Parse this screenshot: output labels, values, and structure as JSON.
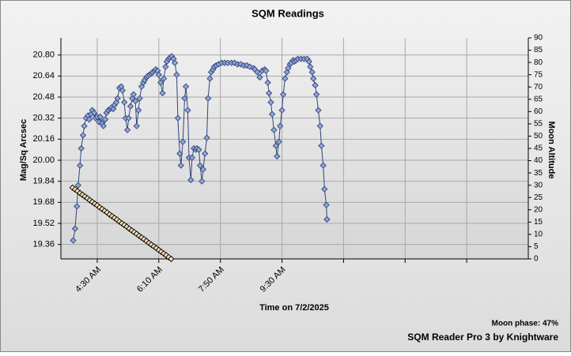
{
  "chart_data": {
    "type": "scatter-line",
    "title": "SQM Readings",
    "xlabel": "Time on 7/2/2025",
    "ylabel": "Mag/Sq Arcsec",
    "y2label": "Moon Altitude",
    "footer_note": "Moon phase: 47%",
    "footer": "SQM Reader Pro 3 by Knightware",
    "xlim": [
      211,
      970
    ],
    "xticks": [
      {
        "value": 270,
        "label": "4:30 AM"
      },
      {
        "value": 370,
        "label": "6:10 AM"
      },
      {
        "value": 470,
        "label": "7:50 AM"
      },
      {
        "value": 570,
        "label": "9:30 AM"
      },
      {
        "value": 670,
        "label": null
      },
      {
        "value": 770,
        "label": null
      },
      {
        "value": 870,
        "label": null
      }
    ],
    "ylim": [
      19.25,
      20.93
    ],
    "yticks": [
      19.36,
      19.52,
      19.68,
      19.84,
      {
        "value": 20.0,
        "label": "20.00"
      },
      20.16,
      20.32,
      20.48,
      20.64,
      {
        "value": 20.8,
        "label": "20.80"
      }
    ],
    "y2lim": [
      0,
      90
    ],
    "y2ticks": [
      0,
      5,
      10,
      15,
      20,
      25,
      30,
      35,
      40,
      45,
      50,
      55,
      60,
      65,
      70,
      75,
      80,
      85,
      90
    ],
    "grid": true,
    "series": [
      {
        "color": "#33447a",
        "marker_color": "#8ea6d6",
        "line": true,
        "x": [
          231,
          234,
          237,
          239,
          242,
          244,
          247,
          249,
          252,
          255,
          257,
          260,
          262,
          265,
          267,
          270,
          273,
          275,
          278,
          280,
          283,
          285,
          288,
          291,
          293,
          296,
          298,
          301,
          303,
          306,
          309,
          311,
          314,
          316,
          319,
          321,
          324,
          327,
          329,
          332,
          334,
          337,
          339,
          342,
          345,
          347,
          350,
          352,
          355,
          358,
          360,
          363,
          365,
          368,
          370,
          373,
          376,
          378,
          381,
          383,
          386,
          388,
          391,
          394,
          396,
          399,
          401,
          404,
          406,
          409,
          412,
          414,
          417,
          419,
          422,
          424,
          427,
          430,
          432,
          435,
          437,
          440,
          442,
          445,
          448,
          450,
          453,
          455,
          458,
          460,
          463,
          467,
          472,
          477,
          482,
          488,
          493,
          498,
          503,
          508,
          513,
          518,
          524,
          526,
          530,
          534,
          538,
          542,
          544,
          547,
          549,
          552,
          554,
          557,
          560,
          562,
          565,
          567,
          570,
          572,
          575,
          578,
          580,
          583,
          585,
          588,
          590,
          593,
          596,
          601,
          606,
          611,
          614,
          616,
          619,
          621,
          624,
          626,
          629,
          632,
          634,
          637,
          639,
          642,
          643
        ],
        "values": [
          19.39,
          19.48,
          19.65,
          19.81,
          19.96,
          20.09,
          20.19,
          20.26,
          20.32,
          20.34,
          20.31,
          20.35,
          20.38,
          20.36,
          20.32,
          20.33,
          20.29,
          20.33,
          20.28,
          20.26,
          20.31,
          20.36,
          20.38,
          20.39,
          20.4,
          20.39,
          20.42,
          20.44,
          20.47,
          20.55,
          20.56,
          20.53,
          20.44,
          20.32,
          20.23,
          20.32,
          20.41,
          20.47,
          20.5,
          20.45,
          20.26,
          20.38,
          20.47,
          20.56,
          20.59,
          20.61,
          20.63,
          20.64,
          20.65,
          20.66,
          20.67,
          20.68,
          20.69,
          20.68,
          20.65,
          20.59,
          20.51,
          20.62,
          20.71,
          20.75,
          20.77,
          20.78,
          20.79,
          20.77,
          20.74,
          20.65,
          20.32,
          20.05,
          19.96,
          20.14,
          20.47,
          20.56,
          20.38,
          20.02,
          19.85,
          20.02,
          20.09,
          20.08,
          20.09,
          20.08,
          19.96,
          19.84,
          19.93,
          20.05,
          20.17,
          20.47,
          20.62,
          20.67,
          20.69,
          20.71,
          20.72,
          20.73,
          20.74,
          20.74,
          20.74,
          20.74,
          20.74,
          20.73,
          20.73,
          20.72,
          20.72,
          20.71,
          20.7,
          20.69,
          20.67,
          20.63,
          20.68,
          20.69,
          20.68,
          20.59,
          20.51,
          20.44,
          20.35,
          20.23,
          20.11,
          20.03,
          20.14,
          20.26,
          20.38,
          20.5,
          20.62,
          20.67,
          20.7,
          20.73,
          20.74,
          20.76,
          20.75,
          20.76,
          20.77,
          20.77,
          20.77,
          20.77,
          20.75,
          20.71,
          20.67,
          20.62,
          20.57,
          20.5,
          20.38,
          20.26,
          20.11,
          19.96,
          19.78,
          19.66,
          19.55
        ]
      },
      {
        "color": "#000000",
        "marker_color": "#f6dfb4",
        "line": false,
        "axis": "y2",
        "x": [
          230,
          234,
          238,
          242,
          246,
          250,
          254,
          258,
          262,
          266,
          270,
          274,
          278,
          282,
          286,
          290,
          294,
          298,
          302,
          306,
          310,
          314,
          318,
          322,
          326,
          330,
          334,
          338,
          342,
          346,
          350,
          354,
          358,
          362,
          366,
          370,
          374,
          378,
          382,
          386,
          390
        ],
        "values": [
          29.0,
          28.3,
          27.6,
          26.8,
          26.1,
          25.4,
          24.7,
          23.9,
          23.2,
          22.5,
          21.8,
          21.0,
          20.3,
          19.6,
          18.9,
          18.1,
          17.4,
          16.7,
          16.0,
          15.2,
          14.5,
          13.8,
          13.1,
          12.3,
          11.6,
          10.9,
          10.2,
          9.4,
          8.7,
          8.0,
          7.3,
          6.5,
          5.8,
          5.1,
          4.4,
          3.6,
          2.9,
          2.2,
          1.5,
          0.7,
          0.0
        ]
      }
    ]
  }
}
